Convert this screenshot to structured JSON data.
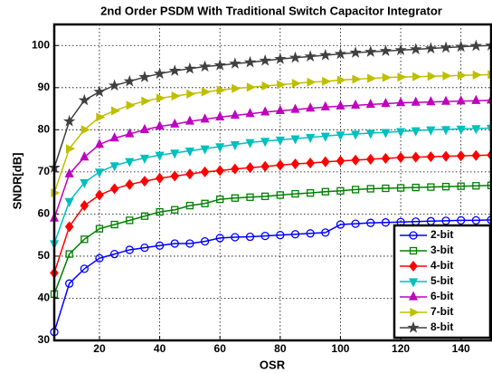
{
  "chart_data": {
    "type": "line",
    "title": "2nd Order PSDM With Traditional Switch Capacitor Integrator",
    "xlabel": "OSR",
    "ylabel": "SNDR[dB]",
    "x": [
      5,
      10,
      15,
      20,
      25,
      30,
      35,
      40,
      45,
      50,
      55,
      60,
      65,
      70,
      75,
      80,
      85,
      90,
      95,
      100,
      105,
      110,
      115,
      120,
      125,
      130,
      135,
      140,
      145,
      150
    ],
    "series": [
      {
        "name": "2-bit",
        "color": "#0000ff",
        "marker": "circle",
        "values": [
          32,
          43.5,
          47,
          49.5,
          50.5,
          51.5,
          52,
          52.5,
          53,
          53,
          53.5,
          54.3,
          54.5,
          54.6,
          54.8,
          55,
          55.2,
          55.4,
          55.6,
          57.5,
          57.7,
          57.9,
          58,
          58.1,
          58.2,
          58.3,
          58.4,
          58.5,
          58.5,
          58.6
        ]
      },
      {
        "name": "3-bit",
        "color": "#008000",
        "marker": "square",
        "values": [
          41,
          50.5,
          54,
          56.5,
          57.5,
          58.5,
          59.5,
          60.5,
          61,
          62,
          62.5,
          63.5,
          63.8,
          64,
          64.2,
          64.5,
          64.8,
          65,
          65.3,
          65.5,
          65.8,
          66,
          66.1,
          66.2,
          66.3,
          66.4,
          66.5,
          66.6,
          66.7,
          66.8
        ]
      },
      {
        "name": "4-bit",
        "color": "#ff0000",
        "marker": "diamond",
        "values": [
          46,
          57,
          62,
          64.5,
          66,
          67,
          67.8,
          68.5,
          69,
          69.5,
          70,
          70.3,
          70.7,
          71,
          71.3,
          71.6,
          71.9,
          72.1,
          72.4,
          72.6,
          72.8,
          73,
          73.2,
          73.4,
          73.5,
          73.6,
          73.7,
          73.8,
          73.9,
          74
        ]
      },
      {
        "name": "5-bit",
        "color": "#00bfbf",
        "marker": "triangle-down",
        "values": [
          53,
          63,
          67.5,
          70,
          71.5,
          72.5,
          73.3,
          74,
          74.5,
          75,
          75.5,
          76,
          76.5,
          77,
          77.3,
          77.6,
          77.9,
          78.2,
          78.5,
          78.8,
          79,
          79.2,
          79.4,
          79.6,
          79.8,
          80,
          80.1,
          80.2,
          80.3,
          80.4
        ]
      },
      {
        "name": "6-bit",
        "color": "#bf00bf",
        "marker": "triangle-up",
        "values": [
          59,
          69.5,
          73.5,
          76.5,
          78,
          79,
          80,
          80.8,
          81.3,
          82,
          82.5,
          83,
          83.4,
          83.8,
          84.2,
          84.5,
          84.8,
          85.1,
          85.4,
          85.6,
          85.8,
          86,
          86.2,
          86.4,
          86.5,
          86.6,
          86.7,
          86.8,
          86.9,
          87
        ]
      },
      {
        "name": "7-bit",
        "color": "#bfbf00",
        "marker": "triangle-right",
        "values": [
          65,
          75.5,
          80,
          83,
          84.5,
          85.8,
          86.8,
          87.5,
          88,
          88.5,
          89,
          89.4,
          89.8,
          90.1,
          90.4,
          90.7,
          91,
          91.3,
          91.5,
          91.8,
          92,
          92.2,
          92.4,
          92.5,
          92.6,
          92.7,
          92.8,
          92.9,
          93,
          93.1
        ]
      },
      {
        "name": "8-bit",
        "color": "#404040",
        "marker": "star",
        "values": [
          71,
          82,
          87,
          89,
          90.5,
          91.5,
          92.5,
          93.3,
          94,
          94.5,
          95,
          95.3,
          95.7,
          96,
          96.4,
          96.8,
          97.1,
          97.4,
          97.7,
          98,
          98.3,
          98.5,
          98.7,
          98.9,
          99.1,
          99.3,
          99.5,
          99.7,
          99.9,
          100
        ]
      }
    ],
    "xlim": [
      5,
      150
    ],
    "xticks": [
      20,
      40,
      60,
      80,
      100,
      120,
      140
    ],
    "ylim": [
      30,
      105
    ],
    "yticks": [
      30,
      40,
      50,
      60,
      70,
      80,
      90,
      100
    ],
    "grid": true,
    "legend": "lower right"
  }
}
